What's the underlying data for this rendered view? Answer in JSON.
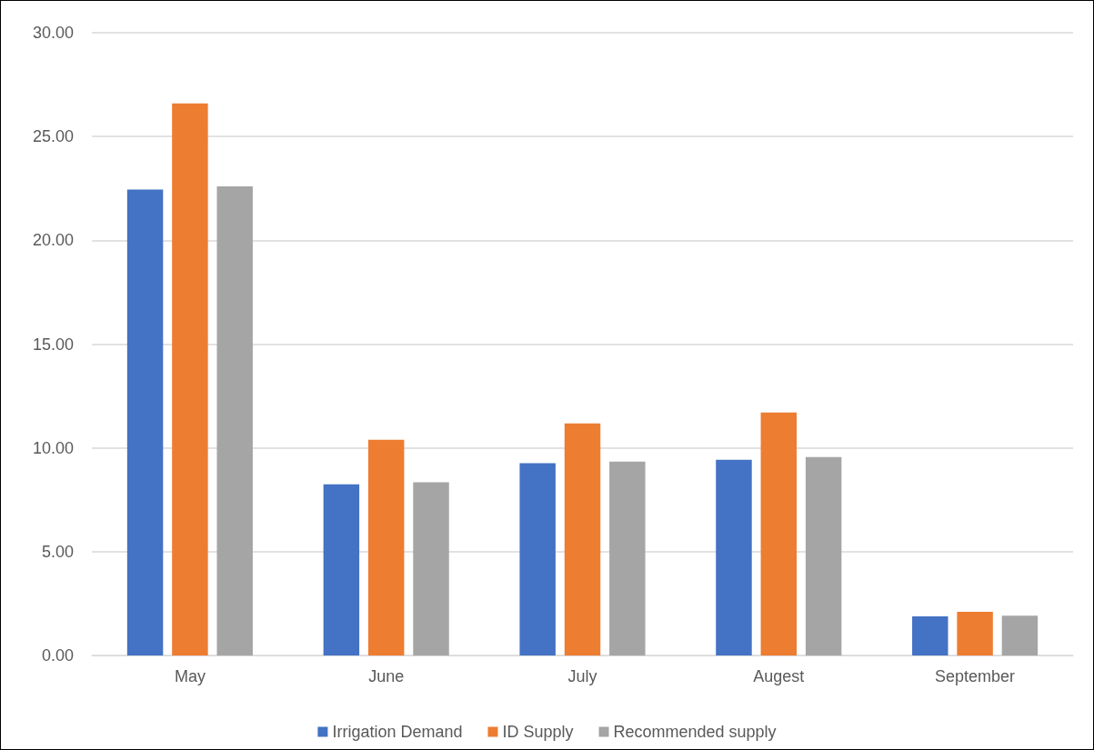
{
  "chart_data": {
    "type": "bar",
    "categories": [
      "May",
      "June",
      "July",
      "Augest",
      "September"
    ],
    "series": [
      {
        "name": "Irrigation Demand",
        "color": "#4472c4",
        "values": [
          22.45,
          8.25,
          9.26,
          9.43,
          1.88
        ]
      },
      {
        "name": "ID Supply",
        "color": "#ed7d31",
        "values": [
          26.6,
          10.39,
          11.18,
          11.7,
          2.1
        ]
      },
      {
        "name": "Recommended supply",
        "color": "#a5a5a5",
        "values": [
          22.6,
          8.34,
          9.34,
          9.56,
          1.92
        ]
      }
    ],
    "ylim": [
      0,
      30
    ],
    "yticks": [
      {
        "value": 0,
        "label": "0.00"
      },
      {
        "value": 5,
        "label": "5.00"
      },
      {
        "value": 10,
        "label": "10.00"
      },
      {
        "value": 15,
        "label": "15.00"
      },
      {
        "value": 20,
        "label": "20.00"
      },
      {
        "value": 25,
        "label": "25.00"
      },
      {
        "value": 30,
        "label": "30.00"
      }
    ],
    "grid": "y",
    "legend": "bottom"
  }
}
